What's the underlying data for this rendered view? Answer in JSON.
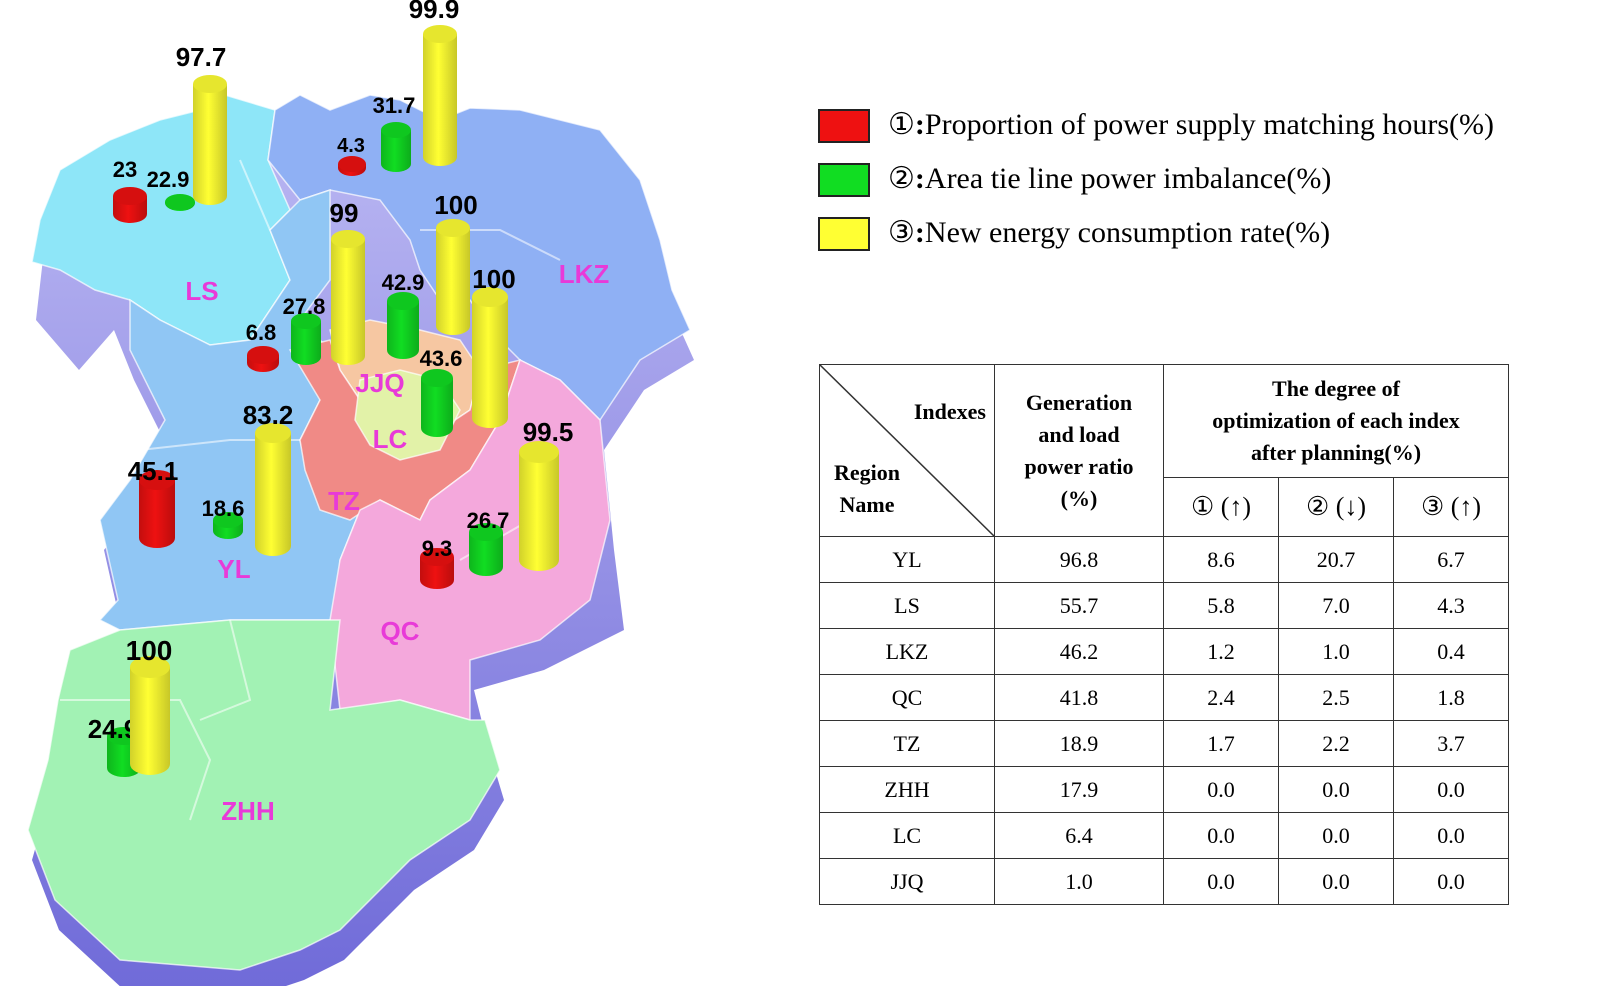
{
  "legend": [
    {
      "marker": "①",
      "text": "Proportion of power supply matching hours(%)",
      "color": "#ee1111"
    },
    {
      "marker": "②",
      "text": "Area tie line power imbalance(%)",
      "color": "#11dd22"
    },
    {
      "marker": "③",
      "text": "New energy consumption rate(%)",
      "color": "#ffff33"
    }
  ],
  "regions": [
    {
      "name": "LS",
      "color": "#8ee6f8"
    },
    {
      "name": "LKZ",
      "color": "#8fb0f4"
    },
    {
      "name": "YL",
      "color": "#90c6f4"
    },
    {
      "name": "JJQ",
      "color": "#f6c7a2"
    },
    {
      "name": "LC",
      "color": "#e2f2a8"
    },
    {
      "name": "TZ",
      "color": "#f08a86"
    },
    {
      "name": "QC",
      "color": "#f4a8dc"
    },
    {
      "name": "ZHH",
      "color": "#a2f2b4"
    }
  ],
  "bars": [
    {
      "region": "LS",
      "metric": 1,
      "value": "23"
    },
    {
      "region": "LS",
      "metric": 2,
      "value": "22.9"
    },
    {
      "region": "LS",
      "metric": 3,
      "value": "97.7"
    },
    {
      "region": "LKZ",
      "metric": 1,
      "value": "4.3"
    },
    {
      "region": "LKZ",
      "metric": 2,
      "value": "31.7"
    },
    {
      "region": "LKZ",
      "metric": 3,
      "value": "99.9"
    },
    {
      "region": "LC",
      "metric": 1,
      "value": "6.8"
    },
    {
      "region": "LC",
      "metric": 2,
      "value": "27.8"
    },
    {
      "region": "LC",
      "metric": 3,
      "value": "99"
    },
    {
      "region": "JJQ",
      "metric": 2,
      "value": "42.9"
    },
    {
      "region": "JJQ",
      "metric": 3,
      "value": "100"
    },
    {
      "region": "TZ",
      "metric": 2,
      "value": "43.6"
    },
    {
      "region": "TZ",
      "metric": 3,
      "value": "100"
    },
    {
      "region": "YL",
      "metric": 1,
      "value": "45.1"
    },
    {
      "region": "YL",
      "metric": 2,
      "value": "18.6"
    },
    {
      "region": "YL",
      "metric": 3,
      "value": "83.2"
    },
    {
      "region": "QC",
      "metric": 1,
      "value": "9.3"
    },
    {
      "region": "QC",
      "metric": 2,
      "value": "26.7"
    },
    {
      "region": "QC",
      "metric": 3,
      "value": "99.5"
    },
    {
      "region": "ZHH",
      "metric": 2,
      "value": "24.9"
    },
    {
      "region": "ZHH",
      "metric": 3,
      "value": "100"
    }
  ],
  "table": {
    "corner_top": "Indexes",
    "corner_bottom_line1": "Region",
    "corner_bottom_line2": "Name",
    "col_ratio": "Generation and load power ratio (%)",
    "col_ratio_lines": [
      "Generation",
      "and load",
      "power ratio",
      "(%)"
    ],
    "col_group_lines": [
      "The degree of",
      "optimization of each index",
      "after planning(%)"
    ],
    "sub_headers": [
      "① (↑)",
      "② (↓)",
      "③ (↑)"
    ],
    "rows": [
      [
        "YL",
        "96.8",
        "8.6",
        "20.7",
        "6.7"
      ],
      [
        "LS",
        "55.7",
        "5.8",
        "7.0",
        "4.3"
      ],
      [
        "LKZ",
        "46.2",
        "1.2",
        "1.0",
        "0.4"
      ],
      [
        "QC",
        "41.8",
        "2.4",
        "2.5",
        "1.8"
      ],
      [
        "TZ",
        "18.9",
        "1.7",
        "2.2",
        "3.7"
      ],
      [
        "ZHH",
        "17.9",
        "0.0",
        "0.0",
        "0.0"
      ],
      [
        "LC",
        "6.4",
        "0.0",
        "0.0",
        "0.0"
      ],
      [
        "JJQ",
        "1.0",
        "0.0",
        "0.0",
        "0.0"
      ]
    ]
  }
}
